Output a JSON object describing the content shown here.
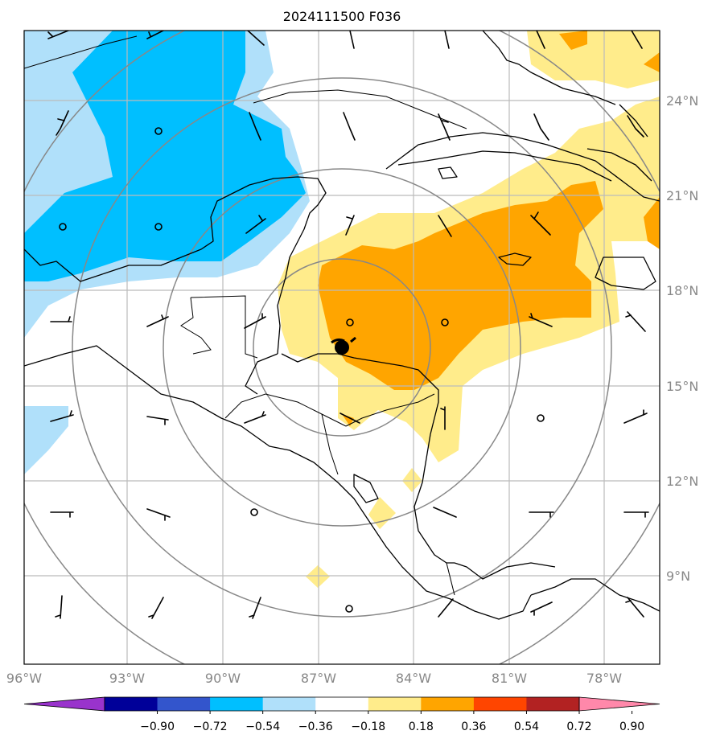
{
  "title": "2024111500 F036",
  "axes": {
    "lon_ticks": [
      "96°W",
      "93°W",
      "90°W",
      "87°W",
      "84°W",
      "81°W",
      "78°W"
    ],
    "lat_ticks": [
      "24°N",
      "21°N",
      "18°N",
      "15°N",
      "12°N",
      "9°N"
    ],
    "lon_range": [
      -96,
      -75.5
    ],
    "lat_range": [
      6.3,
      26.3
    ]
  },
  "colorbar": {
    "labels": [
      "−0.90",
      "−0.72",
      "−0.54",
      "−0.36",
      "−0.18",
      "0.18",
      "0.36",
      "0.54",
      "0.72",
      "0.90"
    ],
    "colors": [
      "#9933cc",
      "#000099",
      "#3355cc",
      "#00bfff",
      "#b0e0fa",
      "#ffffff",
      "#ffec8b",
      "#ffa500",
      "#ff4500",
      "#b22222",
      "#ff88aa"
    ],
    "extend": "both"
  },
  "storm_center": {
    "lon": -86.8,
    "lat": 16.3
  },
  "range_rings": "centered on storm",
  "chart_data": {
    "type": "heatmap",
    "field_levels": [
      -0.9,
      -0.72,
      -0.54,
      -0.36,
      -0.18,
      0.18,
      0.36,
      0.54,
      0.72,
      0.9
    ],
    "regions": [
      {
        "sign": "negative",
        "level": "-0.54 to -0.36",
        "area": "Gulf of Mexico / Yucatan"
      },
      {
        "sign": "positive",
        "level": "0.36 to 0.54",
        "area": "NW Caribbean / Honduras coast"
      },
      {
        "sign": "positive",
        "level": "0.36 to 0.54",
        "area": "NE corner, Bahamas"
      }
    ]
  }
}
